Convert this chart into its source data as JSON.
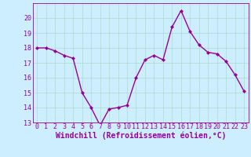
{
  "x": [
    0,
    1,
    2,
    3,
    4,
    5,
    6,
    7,
    8,
    9,
    10,
    11,
    12,
    13,
    14,
    15,
    16,
    17,
    18,
    19,
    20,
    21,
    22,
    23
  ],
  "y": [
    18.0,
    18.0,
    17.8,
    17.5,
    17.3,
    15.0,
    14.0,
    12.8,
    13.9,
    14.0,
    14.15,
    16.0,
    17.2,
    17.5,
    17.2,
    19.4,
    20.5,
    19.1,
    18.2,
    17.7,
    17.6,
    17.1,
    16.2,
    15.1
  ],
  "xlabel": "Windchill (Refroidissement éolien,°C)",
  "ylim": [
    13,
    21
  ],
  "xlim": [
    -0.5,
    23.5
  ],
  "yticks": [
    13,
    14,
    15,
    16,
    17,
    18,
    19,
    20
  ],
  "xticks": [
    0,
    1,
    2,
    3,
    4,
    5,
    6,
    7,
    8,
    9,
    10,
    11,
    12,
    13,
    14,
    15,
    16,
    17,
    18,
    19,
    20,
    21,
    22,
    23
  ],
  "line_color": "#990099",
  "marker": "D",
  "marker_size": 2.0,
  "bg_color": "#cceeff",
  "grid_color": "#aaddcc",
  "xlabel_fontsize": 7,
  "tick_fontsize": 6,
  "line_width": 1.0
}
